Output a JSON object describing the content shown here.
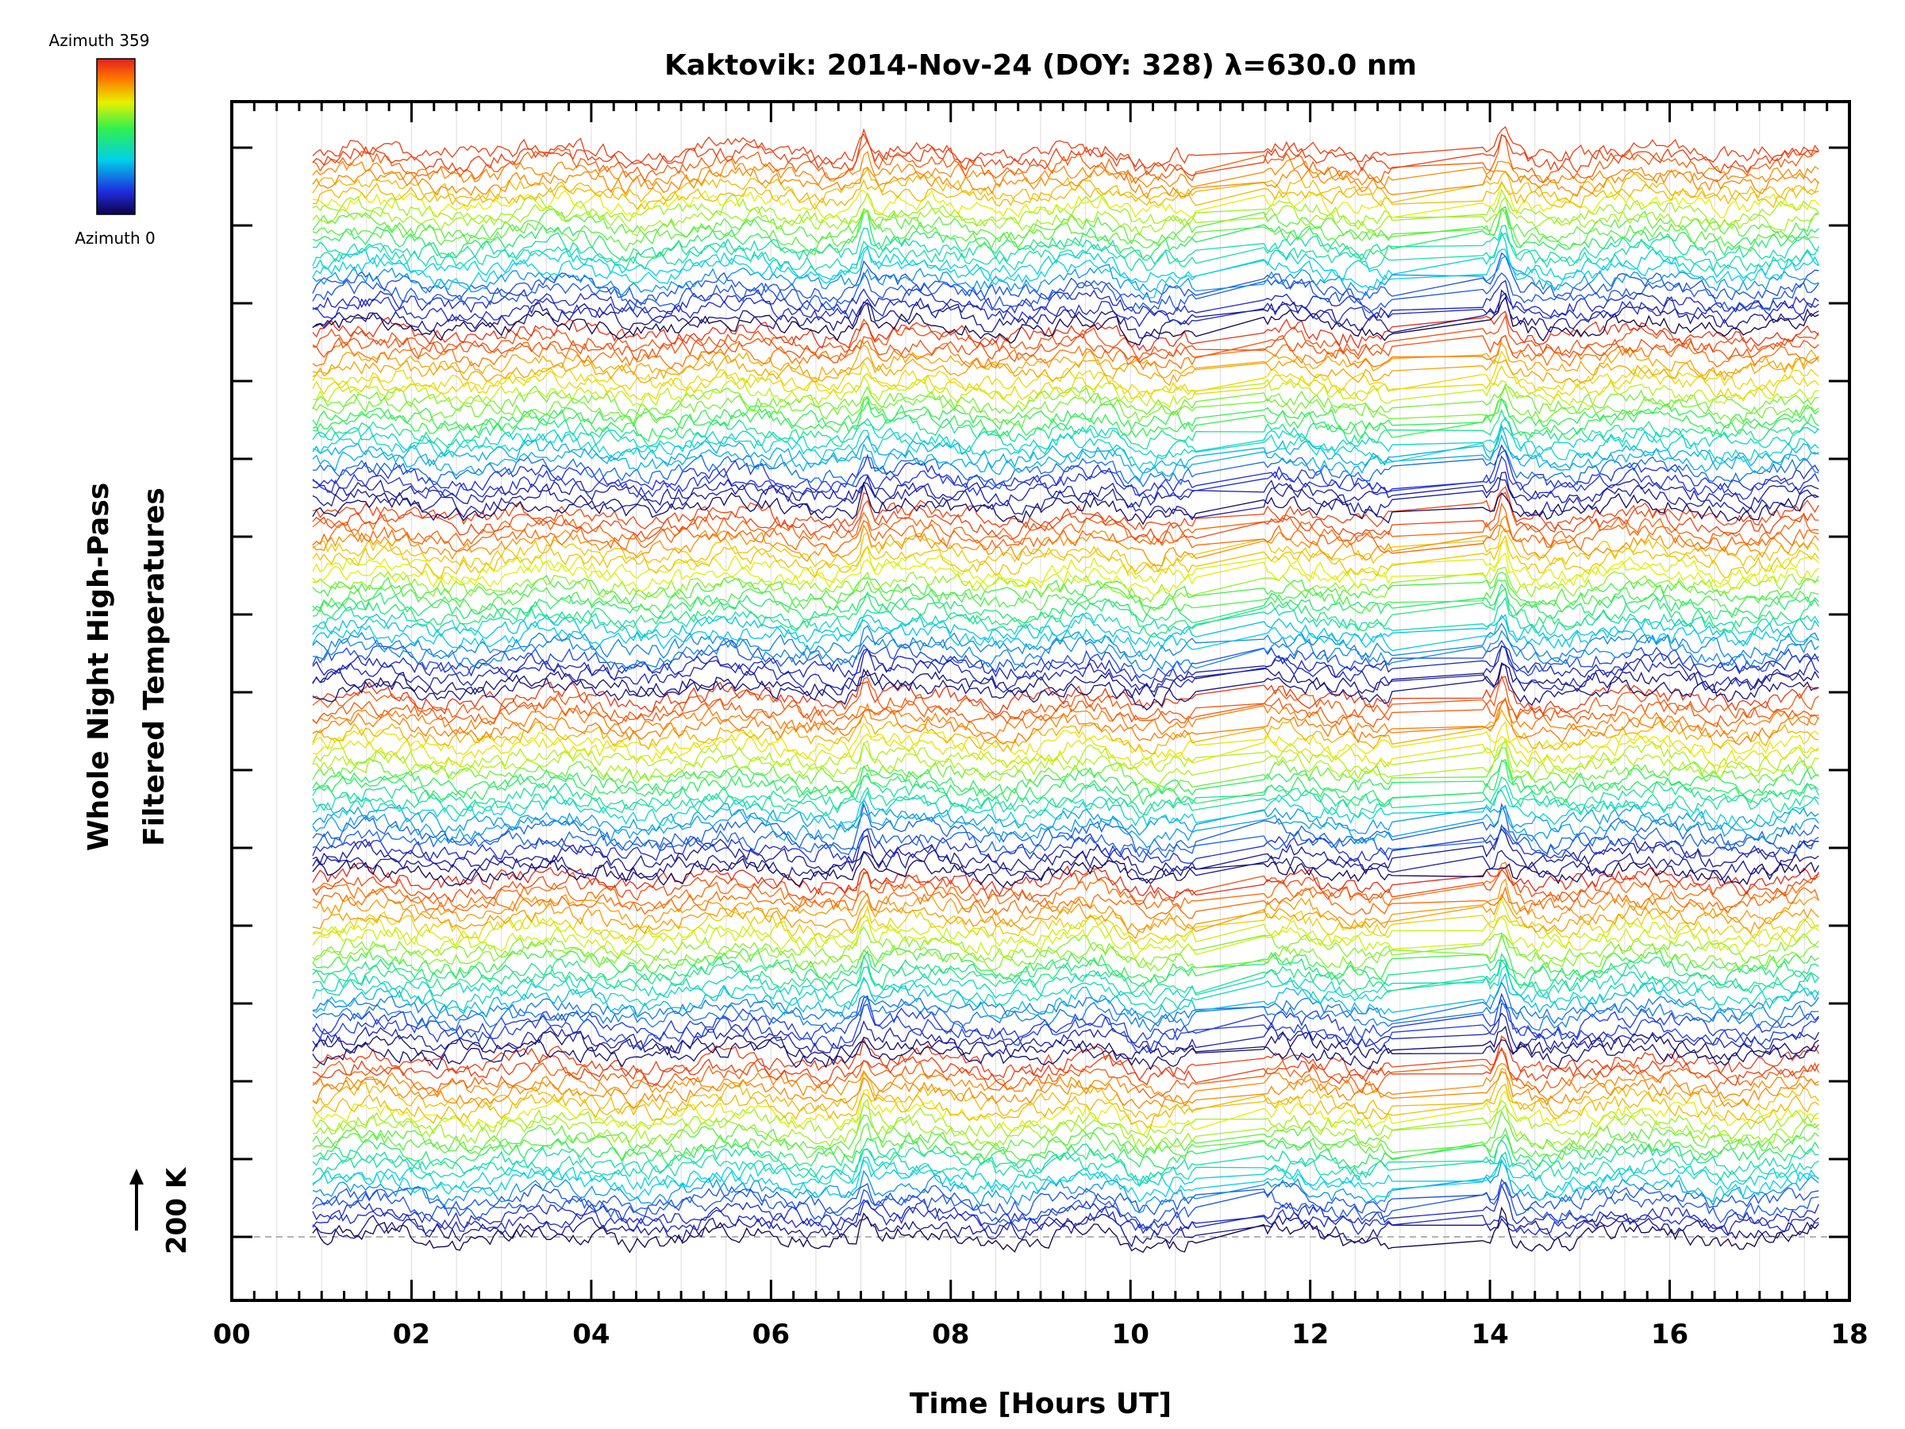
{
  "chart_data": {
    "type": "line",
    "title": "Kaktovik: 2014-Nov-24 (DOY: 328) λ=630.0 nm",
    "xlabel": "Time [Hours UT]",
    "ylabel_line1": "Whole Night High-Pass",
    "ylabel_line2": "Filtered Temperatures",
    "xlim": [
      0,
      18
    ],
    "x_ticks": [
      "00",
      "02",
      "04",
      "06",
      "08",
      "10",
      "12",
      "14",
      "16",
      "18"
    ],
    "x_data_range": [
      0.9,
      17.7
    ],
    "y_scale_label": "200 K",
    "y_scale_value_K": 200,
    "num_traces": 144,
    "y_major_ticks": 15,
    "colorbar": {
      "top_label": "Azimuth  359",
      "bottom_label": "Azimuth  0",
      "min": 0,
      "max": 359,
      "colors": [
        "#10004a",
        "#1f2fe0",
        "#00d0e8",
        "#30f050",
        "#e8f000",
        "#ff7000",
        "#e02020"
      ]
    },
    "notes": "Stacked high-pass filtered temperature traces, one per azimuth, offset vertically; line colour encodes azimuth. Spikes near 07 and 14 UT."
  }
}
